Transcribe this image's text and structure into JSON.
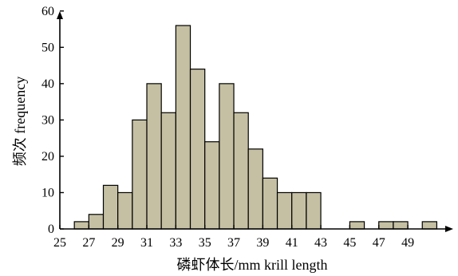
{
  "chart_data": {
    "type": "bar",
    "title": "",
    "xlabel": "磷虾体长/mm krill length",
    "ylabel": "频次 frequency",
    "xlim": [
      25,
      51
    ],
    "ylim": [
      0,
      60
    ],
    "x_ticks": [
      "25",
      "27",
      "29",
      "31",
      "33",
      "35",
      "37",
      "39",
      "41",
      "43",
      "45",
      "47",
      "49"
    ],
    "y_ticks": [
      "0",
      "10",
      "20",
      "30",
      "40",
      "50",
      "60"
    ],
    "grid": false,
    "legend": "none",
    "bar_color": "#c5c0a3",
    "bins": [
      {
        "start": 26,
        "end": 27,
        "value": 2
      },
      {
        "start": 27,
        "end": 28,
        "value": 4
      },
      {
        "start": 28,
        "end": 29,
        "value": 12
      },
      {
        "start": 29,
        "end": 30,
        "value": 10
      },
      {
        "start": 30,
        "end": 31,
        "value": 30
      },
      {
        "start": 31,
        "end": 32,
        "value": 40
      },
      {
        "start": 32,
        "end": 33,
        "value": 32
      },
      {
        "start": 33,
        "end": 34,
        "value": 56
      },
      {
        "start": 34,
        "end": 35,
        "value": 44
      },
      {
        "start": 35,
        "end": 36,
        "value": 24
      },
      {
        "start": 36,
        "end": 37,
        "value": 40
      },
      {
        "start": 37,
        "end": 38,
        "value": 32
      },
      {
        "start": 38,
        "end": 39,
        "value": 22
      },
      {
        "start": 39,
        "end": 40,
        "value": 14
      },
      {
        "start": 40,
        "end": 41,
        "value": 10
      },
      {
        "start": 41,
        "end": 42,
        "value": 10
      },
      {
        "start": 42,
        "end": 43,
        "value": 10
      },
      {
        "start": 45,
        "end": 46,
        "value": 2
      },
      {
        "start": 47,
        "end": 48,
        "value": 2
      },
      {
        "start": 48,
        "end": 49,
        "value": 2
      },
      {
        "start": 50,
        "end": 51,
        "value": 2
      }
    ]
  }
}
